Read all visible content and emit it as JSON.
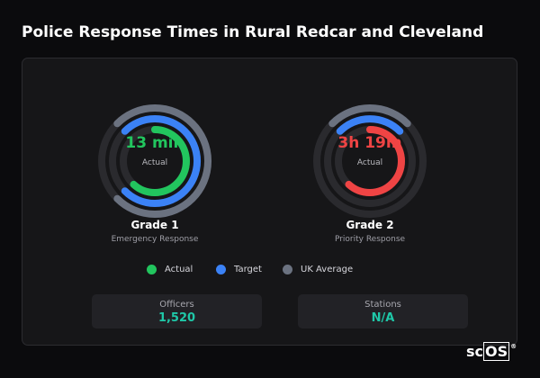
{
  "page": {
    "title": "Police Response Times in Rural Redcar and Cleveland"
  },
  "colors": {
    "actual_grade1": "#22c55e",
    "actual_grade2": "#ef4444",
    "target": "#3b82f6",
    "uk_average": "#6b7280",
    "track": "#2a2a2e",
    "stat_value": "#1fc8a8"
  },
  "gauges": [
    {
      "title": "Grade 1",
      "description": "Emergency Response",
      "value": "13 min",
      "value_label": "Actual",
      "value_color": "#22c55e"
    },
    {
      "title": "Grade 2",
      "description": "Priority Response",
      "value": "3h 19m",
      "value_label": "Actual",
      "value_color": "#ef4444"
    }
  ],
  "legend": [
    {
      "label": "Actual",
      "color": "#22c55e"
    },
    {
      "label": "Target",
      "color": "#3b82f6"
    },
    {
      "label": "UK Average",
      "color": "#6b7280"
    }
  ],
  "stats": [
    {
      "label": "Officers",
      "value": "1,520"
    },
    {
      "label": "Stations",
      "value": "N/A"
    }
  ],
  "brand": {
    "prefix": "sc",
    "boxed": "OS",
    "mark": "®"
  }
}
